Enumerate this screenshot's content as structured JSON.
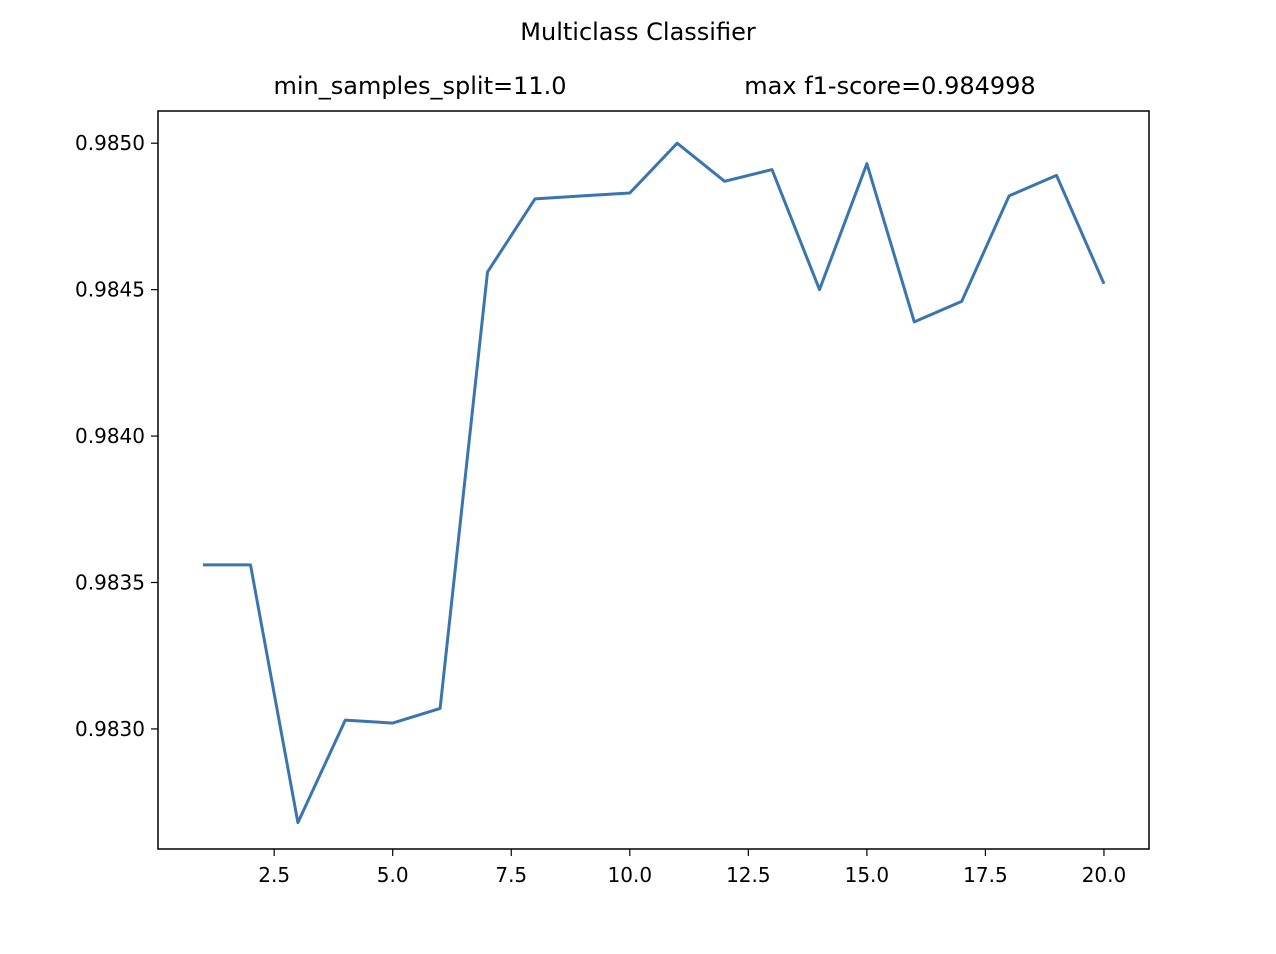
{
  "chart_data": {
    "type": "line",
    "title": "Multiclass Classifier",
    "subtitle_left": "min_samples_split=11.0",
    "subtitle_right": "max f1-score=0.984998",
    "xlabel": "",
    "ylabel": "",
    "x": [
      1,
      2,
      3,
      4,
      5,
      6,
      7,
      8,
      9,
      10,
      11,
      12,
      13,
      14,
      15,
      16,
      17,
      18,
      19,
      20
    ],
    "series": [
      {
        "values": [
          0.98356,
          0.98356,
          0.98268,
          0.98303,
          0.98302,
          0.98307,
          0.98456,
          0.98481,
          0.98482,
          0.98483,
          0.985,
          0.98487,
          0.98491,
          0.9845,
          0.98493,
          0.98439,
          0.98446,
          0.98482,
          0.98489,
          0.98452
        ],
        "color": "#3a75af"
      }
    ],
    "xlim": [
      0.05,
      20.95
    ],
    "ylim": [
      0.98259,
      0.98511
    ],
    "xticks": [
      "2.5",
      "5.0",
      "7.5",
      "10.0",
      "12.5",
      "15.0",
      "17.5",
      "20.0"
    ],
    "yticks": [
      "0.9830",
      "0.9835",
      "0.9840",
      "0.9845",
      "0.9850"
    ],
    "grid": false,
    "legend": "none"
  }
}
